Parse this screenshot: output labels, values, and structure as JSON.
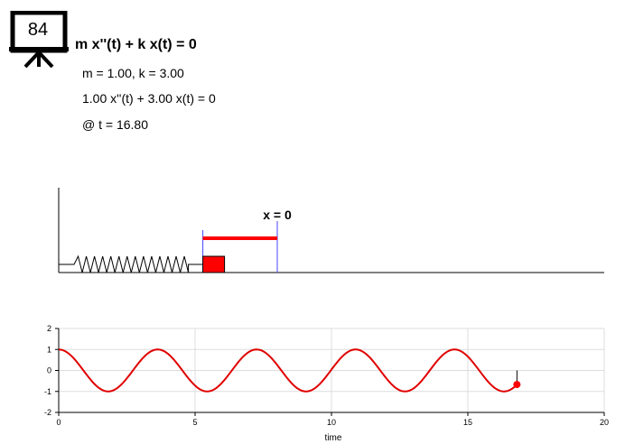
{
  "frame_badge": {
    "value": "84",
    "icon": "presentation-board-icon"
  },
  "equation": {
    "general": "m x''(t) + k x(t) = 0",
    "params": "m = 1.00, k = 3.00",
    "specific": "1.00 x''(t) + 3.00 x(t) = 0",
    "time": "@ t = 16.80"
  },
  "simulation": {
    "equilibrium_label": "x = 0",
    "displacement": -0.67,
    "colors": {
      "mass": "#ff0000",
      "guide": "#4444ff",
      "spring": "#000000"
    }
  },
  "chart_data": {
    "type": "line",
    "title": "",
    "xlabel": "time",
    "ylabel": "",
    "xlim": [
      0,
      20
    ],
    "ylim": [
      -2,
      2
    ],
    "xticks": [
      0,
      5,
      10,
      15,
      20
    ],
    "yticks": [
      -2,
      -1,
      0,
      1,
      2
    ],
    "grid": true,
    "series": [
      {
        "color": "#e00000",
        "function": "cos(sqrt(3) t)",
        "t_range": [
          0,
          16.8
        ]
      }
    ],
    "current_point": {
      "x": 16.8,
      "y": -0.67
    }
  }
}
